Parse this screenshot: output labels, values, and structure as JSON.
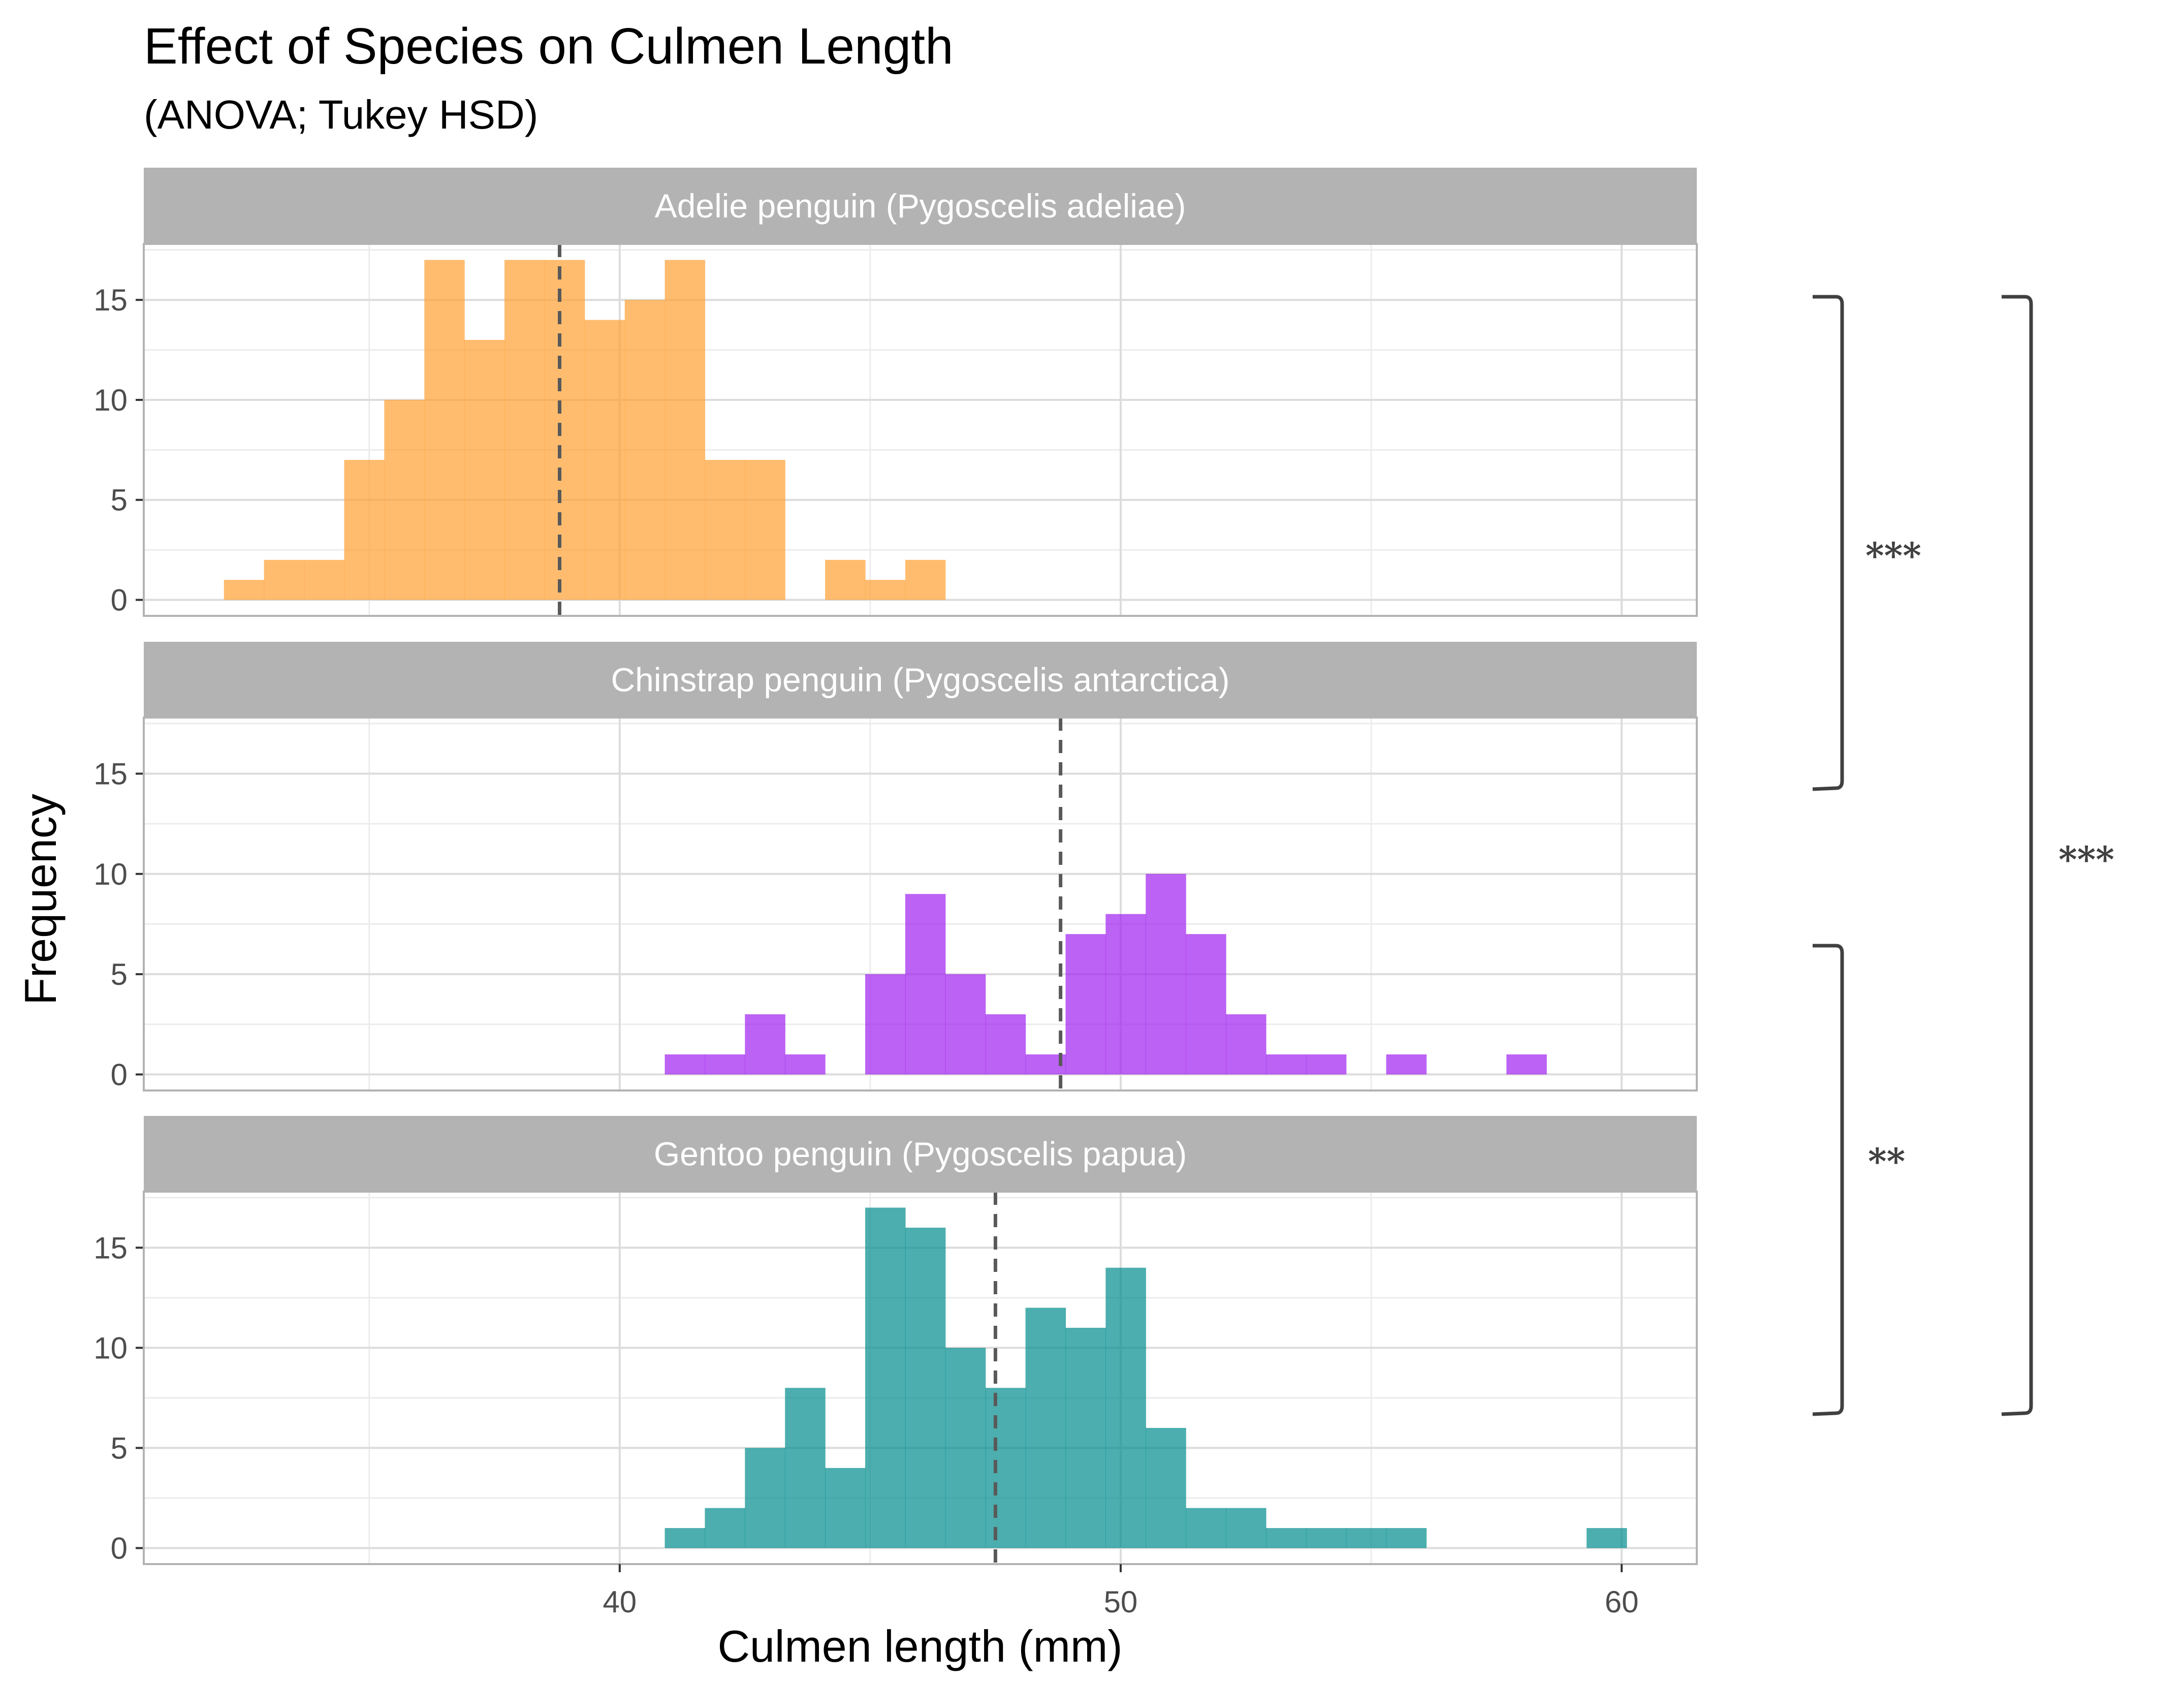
{
  "chart_data": {
    "type": "bar",
    "title": "Effect of Species on Culmen Length",
    "subtitle": "(ANOVA; Tukey HSD)",
    "xlabel": "Culmen length (mm)",
    "ylabel": "Frequency",
    "xlim": [
      30.5,
      61.5
    ],
    "ylim": [
      -0.8,
      17.8
    ],
    "x_ticks": [
      40,
      50,
      60
    ],
    "x_ticks_minor": [
      35,
      45,
      55
    ],
    "y_ticks": [
      0,
      5,
      10,
      15
    ],
    "grid": true,
    "bin_width": 0.8,
    "facets": [
      {
        "strip": "Adelie penguin (Pygoscelis adeliae)",
        "color": "#FFA032",
        "mean": 38.8,
        "bins": [
          {
            "x0": 32.1,
            "count": 1
          },
          {
            "x0": 32.9,
            "count": 2
          },
          {
            "x0": 33.7,
            "count": 2
          },
          {
            "x0": 34.5,
            "count": 7
          },
          {
            "x0": 35.3,
            "count": 10
          },
          {
            "x0": 36.1,
            "count": 17
          },
          {
            "x0": 36.9,
            "count": 13
          },
          {
            "x0": 37.7,
            "count": 17
          },
          {
            "x0": 38.5,
            "count": 17
          },
          {
            "x0": 39.3,
            "count": 14
          },
          {
            "x0": 40.1,
            "count": 15
          },
          {
            "x0": 40.9,
            "count": 17
          },
          {
            "x0": 41.7,
            "count": 7
          },
          {
            "x0": 42.5,
            "count": 7
          },
          {
            "x0": 44.1,
            "count": 2
          },
          {
            "x0": 44.9,
            "count": 1
          },
          {
            "x0": 45.7,
            "count": 2
          }
        ]
      },
      {
        "strip": "Chinstrap penguin (Pygoscelis antarctica)",
        "color": "#A020F0",
        "mean": 48.8,
        "bins": [
          {
            "x0": 40.9,
            "count": 1
          },
          {
            "x0": 41.7,
            "count": 1
          },
          {
            "x0": 42.5,
            "count": 3
          },
          {
            "x0": 43.3,
            "count": 1
          },
          {
            "x0": 44.9,
            "count": 5
          },
          {
            "x0": 45.7,
            "count": 9
          },
          {
            "x0": 46.5,
            "count": 5
          },
          {
            "x0": 47.3,
            "count": 3
          },
          {
            "x0": 48.1,
            "count": 1
          },
          {
            "x0": 48.9,
            "count": 7
          },
          {
            "x0": 49.7,
            "count": 8
          },
          {
            "x0": 50.5,
            "count": 10
          },
          {
            "x0": 51.3,
            "count": 7
          },
          {
            "x0": 52.1,
            "count": 3
          },
          {
            "x0": 52.9,
            "count": 1
          },
          {
            "x0": 53.7,
            "count": 1
          },
          {
            "x0": 55.3,
            "count": 1
          },
          {
            "x0": 57.7,
            "count": 1
          }
        ]
      },
      {
        "strip": "Gentoo penguin (Pygoscelis papua)",
        "color": "#008B8B",
        "mean": 47.5,
        "bins": [
          {
            "x0": 40.9,
            "count": 1
          },
          {
            "x0": 41.7,
            "count": 2
          },
          {
            "x0": 42.5,
            "count": 5
          },
          {
            "x0": 43.3,
            "count": 8
          },
          {
            "x0": 44.1,
            "count": 4
          },
          {
            "x0": 44.9,
            "count": 17
          },
          {
            "x0": 45.7,
            "count": 16
          },
          {
            "x0": 46.5,
            "count": 10
          },
          {
            "x0": 47.3,
            "count": 8
          },
          {
            "x0": 48.1,
            "count": 12
          },
          {
            "x0": 48.9,
            "count": 11
          },
          {
            "x0": 49.7,
            "count": 14
          },
          {
            "x0": 50.5,
            "count": 6
          },
          {
            "x0": 51.3,
            "count": 2
          },
          {
            "x0": 52.1,
            "count": 2
          },
          {
            "x0": 52.9,
            "count": 1
          },
          {
            "x0": 53.7,
            "count": 1
          },
          {
            "x0": 54.5,
            "count": 1
          },
          {
            "x0": 55.3,
            "count": 1
          },
          {
            "x0": 59.3,
            "count": 1
          }
        ]
      }
    ],
    "comparisons": [
      {
        "groups": [
          "Adelie penguin (Pygoscelis adeliae)",
          "Chinstrap penguin (Pygoscelis antarctica)"
        ],
        "label": "***"
      },
      {
        "groups": [
          "Chinstrap penguin (Pygoscelis antarctica)",
          "Gentoo penguin (Pygoscelis papua)"
        ],
        "label": "**"
      },
      {
        "groups": [
          "Adelie penguin (Pygoscelis adeliae)",
          "Gentoo penguin (Pygoscelis papua)"
        ],
        "label": "***"
      }
    ]
  }
}
